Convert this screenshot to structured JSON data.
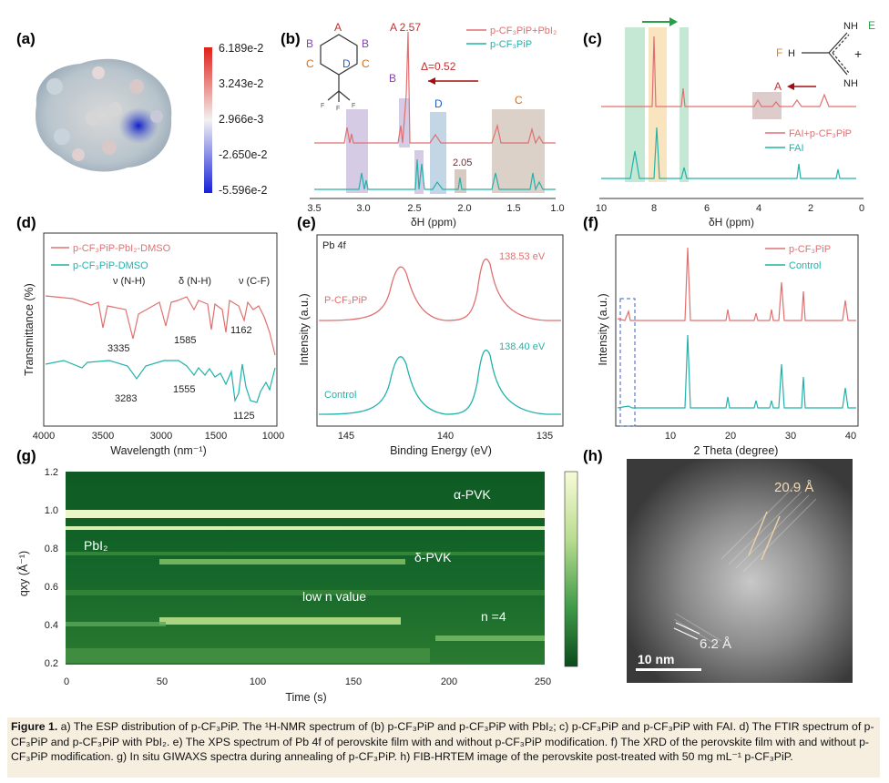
{
  "panels": {
    "a": {
      "label": "(a)",
      "colorbar": [
        "6.189e-2",
        "3.243e-2",
        "2.966e-3",
        "-2.650e-2",
        "-5.596e-2"
      ]
    },
    "b": {
      "label": "(b)",
      "legend": [
        "p-CF₃PiP+PbI₂",
        "p-CF₃PiP"
      ],
      "peak_a": "A 2.57",
      "peak_b": "B",
      "peak_d": "D",
      "peak_c": "C",
      "delta": "Δ=0.52",
      "peak_205": "2.05",
      "xlabel": "δH (ppm)",
      "xticks": [
        "3.5",
        "3.0",
        "2.5",
        "2.0",
        "1.5",
        "1.0"
      ],
      "mol": {
        "A": "A",
        "B": "B",
        "C": "C",
        "D": "D",
        "F": "F"
      }
    },
    "c": {
      "label": "(c)",
      "legend": [
        "FAI+p-CF₃PiP",
        "FAI"
      ],
      "peak": "A",
      "xlabel": "δH (ppm)",
      "xticks": [
        "10",
        "8",
        "6",
        "4",
        "2",
        "0"
      ],
      "mol": {
        "E": "E",
        "F": "F",
        "NH1": "NH",
        "NH2": "NH",
        "H": "H",
        "plus": "+"
      }
    },
    "d": {
      "label": "(d)",
      "legend": [
        "p-CF₃PiP-PbI₂-DMSO",
        "p-CF₃PiP-DMSO"
      ],
      "ylabel": "Transmittance (%)",
      "xlabel": "Wavelength (nm⁻¹)",
      "xticks": [
        "4000",
        "3500",
        "3000",
        "1500",
        "1000"
      ],
      "bands": [
        "ν (N-H)",
        "δ (N-H)",
        "ν (C-F)"
      ],
      "peaks_top": [
        "3335",
        "1585",
        "1162"
      ],
      "peaks_bottom": [
        "3283",
        "1555",
        "1125"
      ]
    },
    "e": {
      "label": "(e)",
      "title": "Pb 4f",
      "ylabel": "Intensity (a.u.)",
      "xlabel": "Binding Energy (eV)",
      "xticks": [
        "145",
        "140",
        "135"
      ],
      "sample_top": "P-CF₃PiP",
      "sample_bottom": "Control",
      "peak_top": "138.53 eV",
      "peak_bottom": "138.40 eV"
    },
    "f": {
      "label": "(f)",
      "legend": [
        "p-CF₃PiP",
        "Control"
      ],
      "ylabel": "Intensity (a.u.)",
      "xlabel": "2 Theta (degree)",
      "xticks": [
        "10",
        "20",
        "30",
        "40"
      ]
    },
    "g": {
      "label": "(g)",
      "ylabel": "qxy (Å⁻¹)",
      "xlabel": "Time (s)",
      "xticks": [
        "0",
        "50",
        "100",
        "150",
        "200",
        "250"
      ],
      "yticks": [
        "1.2",
        "1.0",
        "0.8",
        "0.6",
        "0.4",
        "0.2"
      ],
      "annotations": [
        "α-PVK",
        "PbI₂",
        "δ-PVK",
        "low n value",
        "n =4"
      ]
    },
    "h": {
      "label": "(h)",
      "spacing1": "20.9 Å",
      "spacing2": "6.2 Å",
      "scalebar": "10 nm"
    }
  },
  "caption": {
    "fig": "Figure 1.",
    "text": " a) The ESP distribution of p-CF₃PiP. The ¹H-NMR spectrum of (b) p-CF₃PiP and p-CF₃PiP with PbI₂; c) p-CF₃PiP and p-CF₃PiP with FAI. d) The FTIR spectrum of p-CF₃PiP and p-CF₃PiP with PbI₂. e) The XPS spectrum of Pb 4f of perovskite film with and without p-CF₃PiP modification. f) The XRD of the perovskite film with and without p-CF₃PiP modification. g) In situ GIWAXS spectra during annealing of p-CF₃PiP. h) FIB-HRTEM image of the perovskite post-treated with 50 mg mL⁻¹ p-CF₃PiP."
  }
}
